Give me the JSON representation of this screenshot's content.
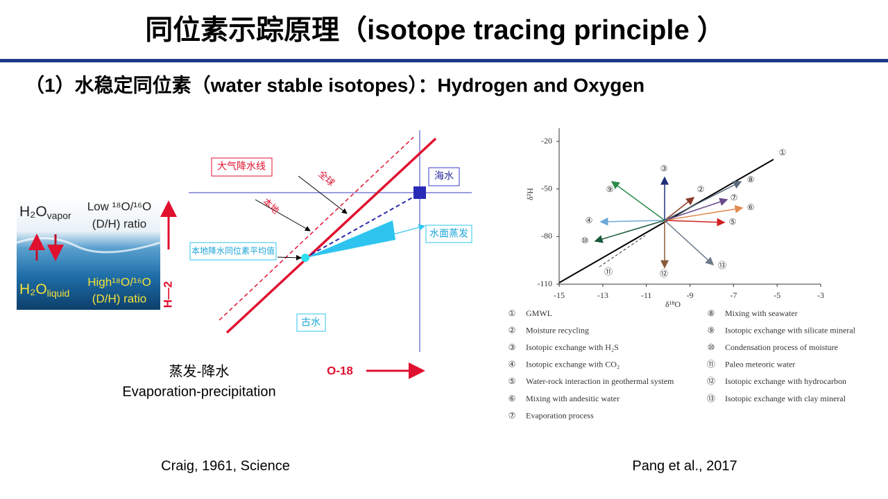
{
  "header": {
    "title": "同位素示踪原理（isotope tracing principle ）",
    "subtitle": "（1）水稳定同位素（water stable isotopes）：Hydrogen and Oxygen"
  },
  "left_figure": {
    "photo": {
      "vapor_base": "H₂O",
      "vapor_sub": "vapor",
      "liquid_base": "H₂O",
      "liquid_sub": "liquid",
      "low_ratio": "Low ¹⁸O/¹⁶O",
      "low_dh": "(D/H) ratio",
      "high_ratio": "High¹⁸O/¹⁶O",
      "high_dh": "(D/H) ratio"
    },
    "diagram": {
      "meteoric_line": "大气降水线",
      "global": "全球",
      "local": "本地",
      "seawater": "海水",
      "evaporation": "水面蒸发",
      "local_mean": "本地降水同位素平均值",
      "paleo_water": "古水",
      "y_axis": "H—2",
      "x_axis": "O-18"
    },
    "caption_cn": "蒸发-降水",
    "caption_en": "Evaporation-precipitation",
    "citation": "Craig, 1961, Science"
  },
  "right_figure": {
    "x_label": "δ¹⁸O",
    "y_label": "δ²H",
    "xlim": [
      -15,
      -3
    ],
    "xticks": [
      -15,
      -13,
      -11,
      -9,
      -7,
      -5,
      -3
    ],
    "ylim": [
      -20,
      -110
    ],
    "yticks": [
      -20,
      -50,
      -80,
      -110
    ],
    "markers": [
      "①",
      "②",
      "③",
      "④",
      "⑤",
      "⑥",
      "⑦",
      "⑧",
      "⑨",
      "⑩",
      "⑪",
      "⑫",
      "⑬"
    ],
    "legend": [
      "GMWL",
      "Moisture recycling",
      "Isotopic exchange with H₂S",
      "Isotopic exchange with CO₂",
      "Water-rock interaction in geothermal system",
      "Mixing with andesitic water",
      "Evaporation process",
      "Mixing with seawater",
      "Isotopic exchange with silicate mineral",
      "Condensation process of moisture",
      "Paleo meteoric water",
      "Isotopic exchange with hydrocarbon",
      "Isotopic exchange with clay mineral"
    ],
    "citation": "Pang et al., 2017"
  }
}
